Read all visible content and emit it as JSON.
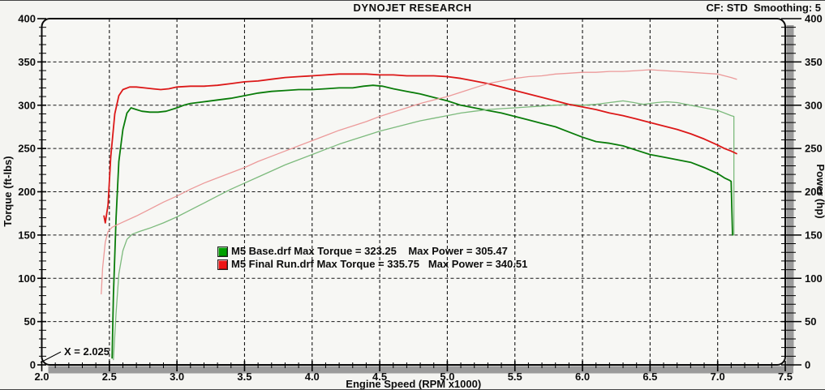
{
  "header": {
    "title": "DYNOJET RESEARCH",
    "settings": "CF: STD  Smoothing: 5"
  },
  "chart_data": {
    "type": "line",
    "title": "DYNOJET RESEARCH",
    "xlabel": "Engine Speed (RPM x1000)",
    "ylabel_left": "Torque (ft-lbs)",
    "ylabel_right": "Power (hp)",
    "xlim": [
      2.0,
      7.5
    ],
    "ylim": [
      0,
      400
    ],
    "x_ticks": [
      "2.0",
      "2.5",
      "3.0",
      "3.5",
      "4.0",
      "4.5",
      "5.0",
      "5.5",
      "6.0",
      "6.5",
      "7.0",
      "7.5"
    ],
    "y_ticks": [
      "0",
      "50",
      "100",
      "150",
      "200",
      "250",
      "300",
      "350",
      "400"
    ],
    "x_minor_divisions": 5,
    "y_minor_divisions": 5,
    "grid": "dashed",
    "legend_position": "inside-center-left",
    "cursor_readout": "X = 2.025",
    "colors": {
      "base_torque": "#0a7c0a",
      "base_power": "#7cba7c",
      "final_torque": "#dc1818",
      "final_power": "#ec9a9a",
      "legend_base_chip": "#00a000",
      "legend_final_chip": "#ee1515",
      "frame": "#0a0a0a",
      "shadow": "#9b9b9b",
      "plot_bg": "#f7f7f4"
    },
    "legend": [
      {
        "chip_color": "#00a000",
        "text": "M5 Base.drf Max Torque = 323.25    Max Power = 305.47"
      },
      {
        "chip_color": "#ee1515",
        "text": "M5 Final Run.drf Max Torque = 335.75   Max Power = 340.51"
      }
    ],
    "runs": [
      {
        "file": "M5 Base.drf",
        "max_torque": 323.25,
        "max_power": 305.47
      },
      {
        "file": "M5 Final Run.drf",
        "max_torque": 335.75,
        "max_power": 340.51
      }
    ],
    "series": [
      {
        "name": "m5-base-torque",
        "axis": "torque-ft-lbs",
        "color_key": "base_torque",
        "width": 1.8,
        "points": [
          [
            2.52,
            8
          ],
          [
            2.53,
            80
          ],
          [
            2.55,
            170
          ],
          [
            2.57,
            235
          ],
          [
            2.6,
            272
          ],
          [
            2.63,
            291
          ],
          [
            2.66,
            297
          ],
          [
            2.7,
            295
          ],
          [
            2.74,
            293
          ],
          [
            2.8,
            292
          ],
          [
            2.86,
            292
          ],
          [
            2.92,
            293
          ],
          [
            3.0,
            297
          ],
          [
            3.05,
            300
          ],
          [
            3.1,
            302
          ],
          [
            3.2,
            304
          ],
          [
            3.3,
            306
          ],
          [
            3.4,
            308
          ],
          [
            3.5,
            311
          ],
          [
            3.6,
            314
          ],
          [
            3.7,
            316
          ],
          [
            3.8,
            317
          ],
          [
            3.9,
            318
          ],
          [
            4.0,
            318
          ],
          [
            4.1,
            319
          ],
          [
            4.2,
            320
          ],
          [
            4.3,
            320
          ],
          [
            4.38,
            322
          ],
          [
            4.45,
            323
          ],
          [
            4.52,
            322
          ],
          [
            4.6,
            319
          ],
          [
            4.7,
            316
          ],
          [
            4.8,
            313
          ],
          [
            4.9,
            309
          ],
          [
            5.0,
            305
          ],
          [
            5.1,
            300
          ],
          [
            5.2,
            297
          ],
          [
            5.3,
            294
          ],
          [
            5.4,
            291
          ],
          [
            5.5,
            287
          ],
          [
            5.6,
            283
          ],
          [
            5.7,
            279
          ],
          [
            5.8,
            275
          ],
          [
            5.9,
            269
          ],
          [
            6.0,
            263
          ],
          [
            6.1,
            258
          ],
          [
            6.2,
            256
          ],
          [
            6.3,
            253
          ],
          [
            6.4,
            248
          ],
          [
            6.5,
            243
          ],
          [
            6.6,
            240
          ],
          [
            6.7,
            237
          ],
          [
            6.8,
            234
          ],
          [
            6.9,
            228
          ],
          [
            7.0,
            221
          ],
          [
            7.05,
            216
          ],
          [
            7.09,
            213
          ],
          [
            7.1,
            212
          ],
          [
            7.11,
            150
          ]
        ]
      },
      {
        "name": "m5-base-power",
        "axis": "power-hp",
        "color_key": "base_power",
        "width": 1.3,
        "points": [
          [
            2.53,
            6
          ],
          [
            2.55,
            60
          ],
          [
            2.57,
            105
          ],
          [
            2.6,
            132
          ],
          [
            2.63,
            145
          ],
          [
            2.67,
            151
          ],
          [
            2.72,
            154
          ],
          [
            2.8,
            158
          ],
          [
            2.9,
            164
          ],
          [
            3.0,
            171
          ],
          [
            3.1,
            179
          ],
          [
            3.2,
            187
          ],
          [
            3.3,
            195
          ],
          [
            3.4,
            203
          ],
          [
            3.5,
            210
          ],
          [
            3.6,
            217
          ],
          [
            3.7,
            224
          ],
          [
            3.8,
            231
          ],
          [
            3.9,
            237
          ],
          [
            4.0,
            243
          ],
          [
            4.1,
            249
          ],
          [
            4.2,
            255
          ],
          [
            4.3,
            260
          ],
          [
            4.4,
            265
          ],
          [
            4.5,
            270
          ],
          [
            4.6,
            274
          ],
          [
            4.7,
            278
          ],
          [
            4.8,
            282
          ],
          [
            4.9,
            285
          ],
          [
            5.0,
            288
          ],
          [
            5.1,
            291
          ],
          [
            5.2,
            293
          ],
          [
            5.3,
            295
          ],
          [
            5.4,
            296
          ],
          [
            5.5,
            297
          ],
          [
            5.6,
            298
          ],
          [
            5.7,
            299
          ],
          [
            5.8,
            300
          ],
          [
            5.9,
            301
          ],
          [
            6.0,
            300
          ],
          [
            6.1,
            301
          ],
          [
            6.2,
            303
          ],
          [
            6.3,
            305
          ],
          [
            6.38,
            303
          ],
          [
            6.45,
            301
          ],
          [
            6.55,
            303
          ],
          [
            6.62,
            304
          ],
          [
            6.7,
            303
          ],
          [
            6.8,
            300
          ],
          [
            6.9,
            297
          ],
          [
            7.0,
            294
          ],
          [
            7.05,
            291
          ],
          [
            7.1,
            288
          ],
          [
            7.12,
            287
          ],
          [
            7.12,
            150
          ]
        ]
      },
      {
        "name": "m5-final-torque",
        "axis": "torque-ft-lbs",
        "color_key": "final_torque",
        "width": 1.8,
        "points": [
          [
            2.46,
            172
          ],
          [
            2.47,
            164
          ],
          [
            2.49,
            185
          ],
          [
            2.51,
            240
          ],
          [
            2.54,
            290
          ],
          [
            2.57,
            311
          ],
          [
            2.6,
            318
          ],
          [
            2.65,
            321
          ],
          [
            2.7,
            321
          ],
          [
            2.76,
            320
          ],
          [
            2.82,
            319
          ],
          [
            2.88,
            318
          ],
          [
            2.94,
            319
          ],
          [
            3.0,
            321
          ],
          [
            3.1,
            322
          ],
          [
            3.2,
            322
          ],
          [
            3.3,
            323
          ],
          [
            3.4,
            325
          ],
          [
            3.5,
            327
          ],
          [
            3.6,
            328
          ],
          [
            3.7,
            330
          ],
          [
            3.8,
            332
          ],
          [
            3.9,
            333
          ],
          [
            4.0,
            334
          ],
          [
            4.1,
            335
          ],
          [
            4.2,
            336
          ],
          [
            4.3,
            336
          ],
          [
            4.4,
            336
          ],
          [
            4.5,
            335
          ],
          [
            4.6,
            335
          ],
          [
            4.7,
            334
          ],
          [
            4.8,
            334
          ],
          [
            4.9,
            334
          ],
          [
            5.0,
            333
          ],
          [
            5.1,
            331
          ],
          [
            5.2,
            328
          ],
          [
            5.3,
            325
          ],
          [
            5.4,
            321
          ],
          [
            5.5,
            317
          ],
          [
            5.6,
            313
          ],
          [
            5.7,
            309
          ],
          [
            5.8,
            305
          ],
          [
            5.9,
            301
          ],
          [
            6.0,
            298
          ],
          [
            6.1,
            295
          ],
          [
            6.2,
            291
          ],
          [
            6.3,
            288
          ],
          [
            6.4,
            284
          ],
          [
            6.5,
            280
          ],
          [
            6.6,
            276
          ],
          [
            6.7,
            272
          ],
          [
            6.8,
            267
          ],
          [
            6.9,
            261
          ],
          [
            7.0,
            254
          ],
          [
            7.05,
            250
          ],
          [
            7.1,
            247
          ],
          [
            7.14,
            244
          ]
        ]
      },
      {
        "name": "m5-final-power",
        "axis": "power-hp",
        "color_key": "final_power",
        "width": 1.3,
        "points": [
          [
            2.44,
            82
          ],
          [
            2.45,
            112
          ],
          [
            2.47,
            142
          ],
          [
            2.49,
            154
          ],
          [
            2.52,
            159
          ],
          [
            2.56,
            162
          ],
          [
            2.6,
            165
          ],
          [
            2.7,
            172
          ],
          [
            2.8,
            180
          ],
          [
            2.9,
            188
          ],
          [
            3.0,
            195
          ],
          [
            3.1,
            203
          ],
          [
            3.2,
            210
          ],
          [
            3.3,
            216
          ],
          [
            3.4,
            222
          ],
          [
            3.5,
            228
          ],
          [
            3.6,
            235
          ],
          [
            3.7,
            241
          ],
          [
            3.8,
            247
          ],
          [
            3.9,
            253
          ],
          [
            4.0,
            259
          ],
          [
            4.1,
            265
          ],
          [
            4.2,
            271
          ],
          [
            4.3,
            276
          ],
          [
            4.4,
            281
          ],
          [
            4.5,
            287
          ],
          [
            4.6,
            292
          ],
          [
            4.7,
            297
          ],
          [
            4.8,
            302
          ],
          [
            4.9,
            306
          ],
          [
            5.0,
            310
          ],
          [
            5.1,
            315
          ],
          [
            5.2,
            320
          ],
          [
            5.3,
            325
          ],
          [
            5.4,
            328
          ],
          [
            5.5,
            331
          ],
          [
            5.6,
            333
          ],
          [
            5.7,
            334
          ],
          [
            5.8,
            336
          ],
          [
            5.9,
            337
          ],
          [
            6.0,
            338
          ],
          [
            6.1,
            338
          ],
          [
            6.2,
            339
          ],
          [
            6.3,
            339
          ],
          [
            6.4,
            340
          ],
          [
            6.5,
            341
          ],
          [
            6.6,
            340
          ],
          [
            6.7,
            339
          ],
          [
            6.8,
            338
          ],
          [
            6.9,
            337
          ],
          [
            7.0,
            336
          ],
          [
            7.05,
            334
          ],
          [
            7.1,
            332
          ],
          [
            7.14,
            330
          ]
        ]
      }
    ]
  }
}
